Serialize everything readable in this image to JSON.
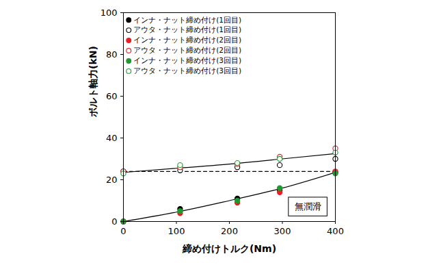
{
  "chart_data": {
    "type": "scatter",
    "x_label": "締め付けトルク(Nm)",
    "y_label": "ボルト軸力(kN)",
    "annotation": "無潤滑",
    "legend": "top-left",
    "grid": false,
    "xlim": [
      0,
      400
    ],
    "xticks": [
      0,
      100,
      200,
      300,
      400
    ],
    "ylim": [
      0,
      100
    ],
    "yticks": [
      0,
      20,
      40,
      60,
      80,
      100
    ],
    "series": [
      {
        "name": "インナ・ナット締め付け(1回目)",
        "color": "#000000",
        "marker": "filled",
        "x": [
          0,
          107,
          215,
          295,
          400
        ],
        "values": [
          0,
          6,
          11,
          15,
          23.5
        ]
      },
      {
        "name": "アウタ・ナット締め付け(1回目)",
        "color": "#000000",
        "marker": "open",
        "x": [
          0,
          107,
          215,
          295,
          400
        ],
        "values": [
          24,
          24.5,
          26,
          27,
          30
        ]
      },
      {
        "name": "インナ・ナット締め付け(2回目)",
        "color": "#ee1c25",
        "marker": "filled",
        "x": [
          0,
          107,
          215,
          295,
          400
        ],
        "values": [
          0,
          4,
          9,
          14,
          24
        ]
      },
      {
        "name": "アウタ・ナット締め付け(2回目)",
        "color": "#ee1c25",
        "marker": "open",
        "x": [
          0,
          107,
          215,
          295,
          400
        ],
        "values": [
          24,
          26,
          27.5,
          31,
          35
        ]
      },
      {
        "name": "インナ・ナット締め付け(3回目)",
        "color": "#1f9a2e",
        "marker": "filled",
        "x": [
          0,
          107,
          215,
          295,
          400
        ],
        "values": [
          0,
          5,
          10,
          16,
          23
        ]
      },
      {
        "name": "アウタ・ナット締め付け(3回目)",
        "color": "#1f9a2e",
        "marker": "open",
        "x": [
          0,
          107,
          215,
          295,
          400
        ],
        "values": [
          23,
          27,
          28,
          30,
          33
        ]
      }
    ],
    "trend_lines": [
      {
        "color": "#000000",
        "line_style": "solid",
        "x": [
          0,
          100,
          200,
          300,
          400
        ],
        "values": [
          23.5,
          25.5,
          27.5,
          30,
          32.5
        ]
      },
      {
        "color": "#000000",
        "line_style": "solid",
        "x": [
          0,
          100,
          200,
          300,
          400
        ],
        "values": [
          0,
          4.5,
          10,
          16,
          23.5
        ]
      },
      {
        "color": "#000000",
        "line_style": "dashed",
        "x": [
          0,
          400
        ],
        "values": [
          24,
          24
        ]
      }
    ]
  }
}
